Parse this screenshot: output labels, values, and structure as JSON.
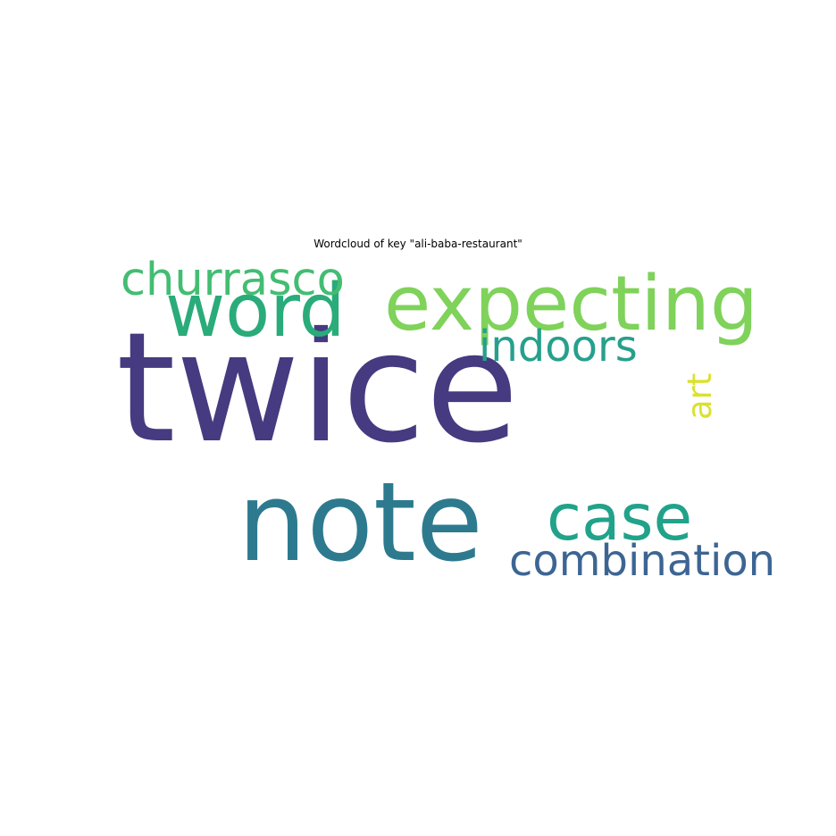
{
  "chart_data": {
    "type": "wordcloud",
    "title": "Wordcloud of key \"ali-baba-restaurant\"",
    "words": [
      {
        "text": "twice",
        "weight": 1.0,
        "color": "#463a80",
        "orientation": "horizontal"
      },
      {
        "text": "note",
        "weight": 0.72,
        "color": "#2d7a8f",
        "orientation": "horizontal"
      },
      {
        "text": "expecting",
        "weight": 0.5,
        "color": "#7fd25a",
        "orientation": "horizontal"
      },
      {
        "text": "word",
        "weight": 0.48,
        "color": "#2aab7a",
        "orientation": "horizontal"
      },
      {
        "text": "case",
        "weight": 0.42,
        "color": "#21a28a",
        "orientation": "horizontal"
      },
      {
        "text": "churrasco",
        "weight": 0.3,
        "color": "#43bd72",
        "orientation": "horizontal"
      },
      {
        "text": "indoors",
        "weight": 0.28,
        "color": "#26a08c",
        "orientation": "horizontal"
      },
      {
        "text": "combination",
        "weight": 0.28,
        "color": "#3c6593",
        "orientation": "horizontal"
      },
      {
        "text": "art",
        "weight": 0.22,
        "color": "#d9e22f",
        "orientation": "vertical"
      }
    ]
  }
}
